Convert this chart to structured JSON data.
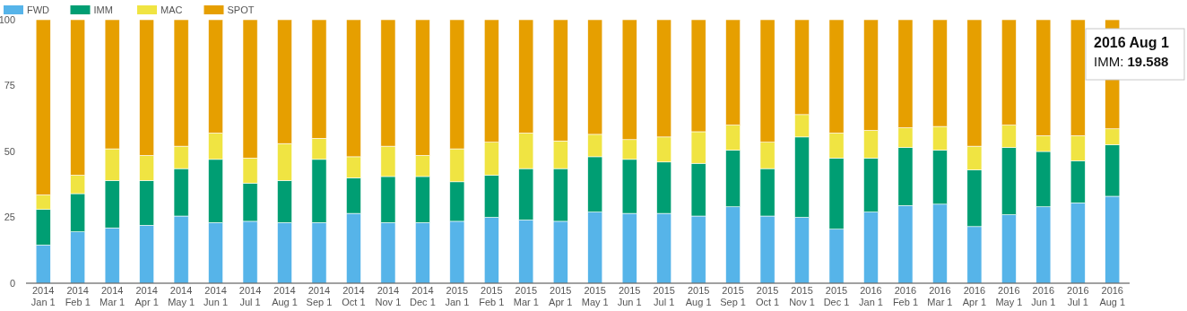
{
  "chart_data": {
    "type": "bar",
    "stacked": true,
    "categories": [
      "2014 Jan 1",
      "2014 Feb 1",
      "2014 Mar 1",
      "2014 Apr 1",
      "2014 May 1",
      "2014 Jun 1",
      "2014 Jul 1",
      "2014 Aug 1",
      "2014 Sep 1",
      "2014 Oct 1",
      "2014 Nov 1",
      "2014 Dec 1",
      "2015 Jan 1",
      "2015 Feb 1",
      "2015 Mar 1",
      "2015 Apr 1",
      "2015 May 1",
      "2015 Jun 1",
      "2015 Jul 1",
      "2015 Aug 1",
      "2015 Sep 1",
      "2015 Oct 1",
      "2015 Nov 1",
      "2015 Dec 1",
      "2016 Jan 1",
      "2016 Feb 1",
      "2016 Mar 1",
      "2016 Apr 1",
      "2016 May 1",
      "2016 Jun 1",
      "2016 Jul 1",
      "2016 Aug 1"
    ],
    "series": [
      {
        "name": "FWD",
        "color": "#56b4e9",
        "values": [
          14.5,
          19.5,
          21,
          22,
          25.5,
          23,
          23.5,
          23,
          23,
          26.5,
          23,
          23,
          23.5,
          25,
          24,
          23.5,
          27,
          26.5,
          26.5,
          25.5,
          29,
          25.5,
          25,
          20.5,
          27,
          29.5,
          30,
          21.5,
          26,
          29,
          30.5,
          33
        ]
      },
      {
        "name": "IMM",
        "color": "#009e73",
        "values": [
          13.5,
          14.5,
          18,
          17,
          18,
          24,
          14.5,
          16,
          24,
          13.5,
          17.5,
          17.5,
          15,
          16,
          19.5,
          20,
          21,
          20.5,
          19.5,
          20,
          21.5,
          18,
          30.5,
          27,
          20.5,
          22,
          20.5,
          21.5,
          25.5,
          21,
          16,
          19.588
        ]
      },
      {
        "name": "MAC",
        "color": "#f0e442",
        "values": [
          5.5,
          7,
          12,
          9.5,
          8.5,
          10,
          9.5,
          14,
          8,
          8,
          11.5,
          8,
          12.5,
          12.5,
          13.5,
          10.5,
          8.5,
          7.5,
          9.5,
          12,
          9.5,
          10,
          8.5,
          9.5,
          10.5,
          7.5,
          9,
          9,
          8.5,
          6,
          9.5,
          6
        ]
      },
      {
        "name": "SPOT",
        "color": "#e69f00",
        "values": [
          66.5,
          59,
          49,
          51.5,
          48,
          43,
          52.5,
          47,
          45,
          52,
          48,
          51.5,
          49,
          46.5,
          43,
          46,
          43.5,
          45.5,
          44.5,
          42.5,
          40,
          46.5,
          36,
          43,
          42,
          41,
          40.5,
          48,
          40,
          44,
          44,
          41.4
        ]
      }
    ],
    "ylim": [
      0,
      100
    ],
    "yticks": [
      0,
      25,
      50,
      75,
      100
    ],
    "grid": false,
    "legend": "top left",
    "annotations": [
      "2016 Aug 1\nIMM: 19.588"
    ]
  }
}
